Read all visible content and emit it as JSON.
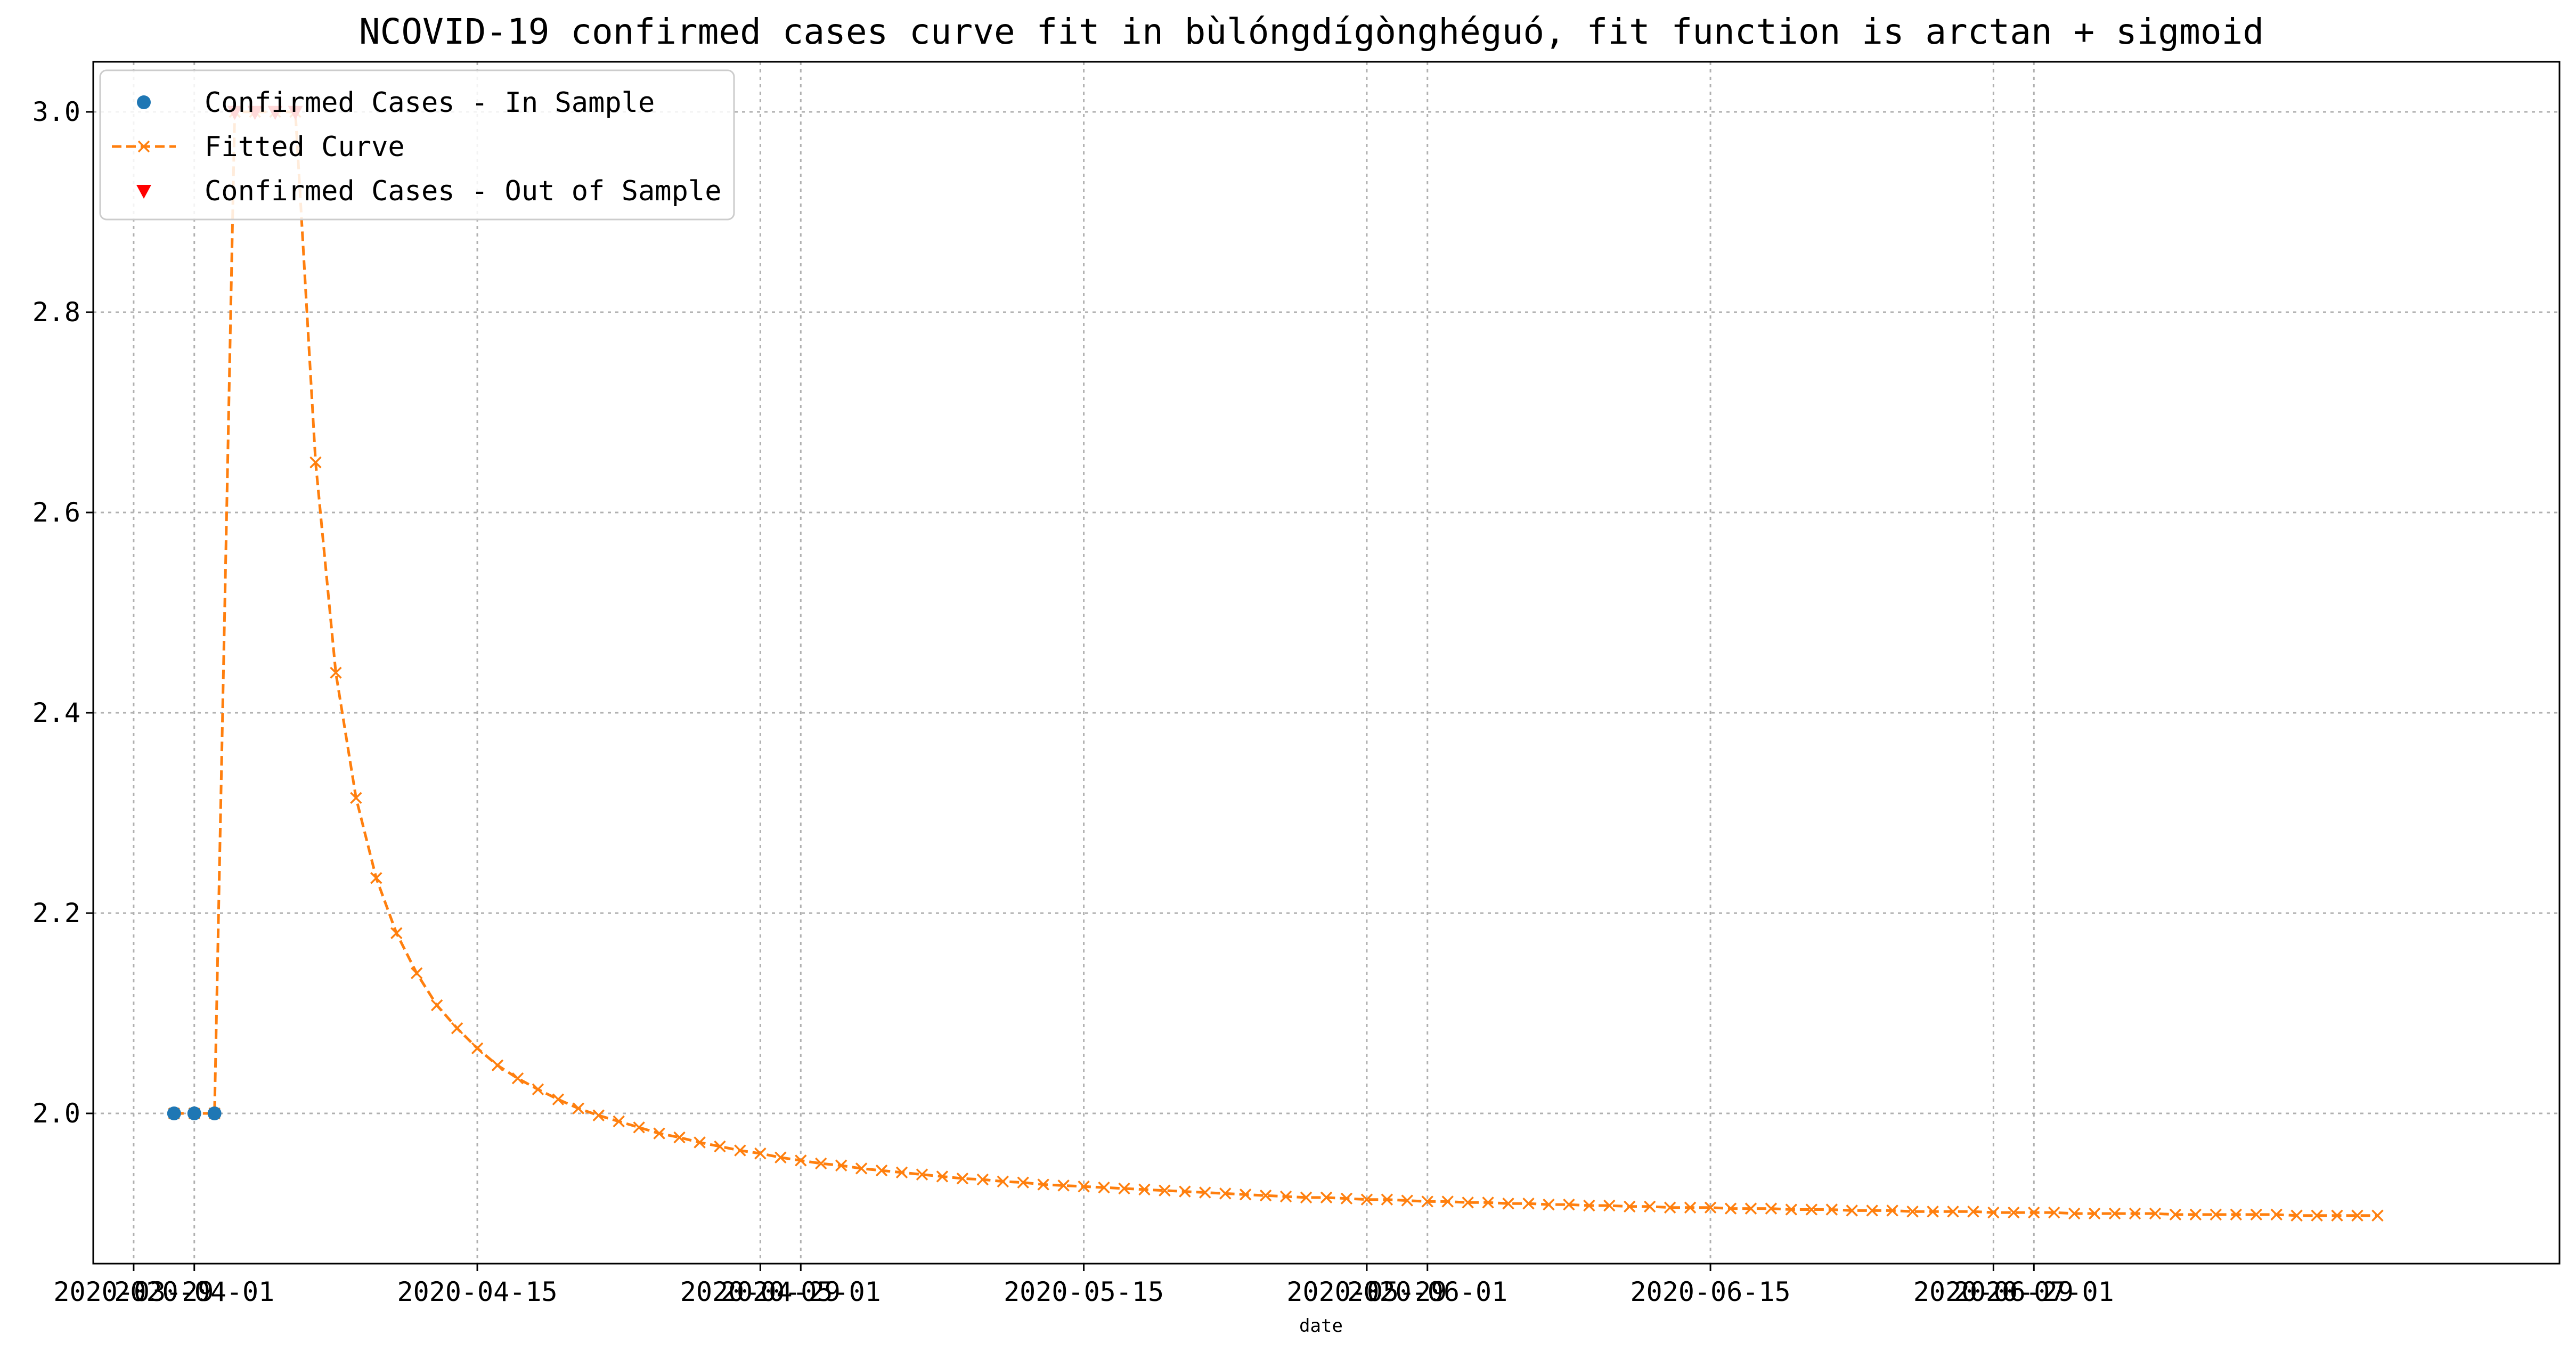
{
  "chart_data": {
    "type": "line",
    "title": "NCOVID-19 confirmed cases curve fit in bùlóngdígònghéguó, fit function is arctan + sigmoid",
    "xlabel": "date",
    "ylabel": "",
    "x_ticks": [
      {
        "date": "2020-03-29",
        "label": "2020-03-29"
      },
      {
        "date": "2020-04-01",
        "label": "2020-04-01"
      },
      {
        "date": "2020-04-15",
        "label": "2020-04-15"
      },
      {
        "date": "2020-04-29",
        "label": "2020-04-29"
      },
      {
        "date": "2020-05-01",
        "label": "2020-05-01"
      },
      {
        "date": "2020-05-15",
        "label": "2020-05-15"
      },
      {
        "date": "2020-05-29",
        "label": "2020-05-29"
      },
      {
        "date": "2020-06-01",
        "label": "2020-06-01"
      },
      {
        "date": "2020-06-15",
        "label": "2020-06-15"
      },
      {
        "date": "2020-06-29",
        "label": "2020-06-29"
      },
      {
        "date": "2020-07-01",
        "label": "2020-07-01"
      }
    ],
    "y_ticks": [
      2.0,
      2.2,
      2.4,
      2.6,
      2.8,
      3.0
    ],
    "y_tick_labels": [
      "2.0",
      "2.2",
      "2.4",
      "2.6",
      "2.8",
      "3.0"
    ],
    "xlim": [
      "2020-03-27",
      "2020-07-27"
    ],
    "ylim": [
      1.85,
      3.05
    ],
    "grid": true,
    "legend_position": "top-left",
    "series": [
      {
        "name": "Confirmed Cases - In Sample",
        "marker": "circle",
        "color": "#1f77b4",
        "x": [
          "2020-03-31",
          "2020-04-01",
          "2020-04-02"
        ],
        "y": [
          2.0,
          2.0,
          2.0
        ]
      },
      {
        "name": "Fitted Curve",
        "marker": "x",
        "line_style": "dashed",
        "color": "#ff7f0e",
        "start_date": "2020-03-31",
        "y": [
          2.0,
          2.0,
          2.0,
          3.0,
          3.0,
          3.0,
          3.0,
          2.65,
          2.44,
          2.315,
          2.235,
          2.18,
          2.14,
          2.108,
          2.085,
          2.065,
          2.048,
          2.035,
          2.024,
          2.014,
          2.005,
          1.998,
          1.992,
          1.986,
          1.98,
          1.976,
          1.971,
          1.967,
          1.963,
          1.96,
          1.956,
          1.953,
          1.95,
          1.948,
          1.945,
          1.943,
          1.941,
          1.939,
          1.937,
          1.935,
          1.934,
          1.932,
          1.931,
          1.929,
          1.928,
          1.927,
          1.926,
          1.925,
          1.924,
          1.923,
          1.922,
          1.921,
          1.92,
          1.919,
          1.918,
          1.917,
          1.916,
          1.916,
          1.915,
          1.914,
          1.914,
          1.913,
          1.912,
          1.912,
          1.911,
          1.911,
          1.91,
          1.91,
          1.909,
          1.909,
          1.908,
          1.908,
          1.907,
          1.907,
          1.906,
          1.906,
          1.906,
          1.905,
          1.905,
          1.905,
          1.904,
          1.904,
          1.904,
          1.903,
          1.903,
          1.903,
          1.902,
          1.902,
          1.902,
          1.902,
          1.901,
          1.901,
          1.901,
          1.901,
          1.9,
          1.9,
          1.9,
          1.9,
          1.9,
          1.899,
          1.899,
          1.899,
          1.899,
          1.899,
          1.899,
          1.898,
          1.898,
          1.898,
          1.898,
          1.898
        ]
      },
      {
        "name": "Confirmed Cases - Out of Sample",
        "marker": "triangle-down",
        "color": "#ff0000",
        "x": [
          "2020-04-03",
          "2020-04-04",
          "2020-04-05",
          "2020-04-06"
        ],
        "y": [
          3.0,
          3.0,
          3.0,
          3.0
        ]
      }
    ]
  }
}
